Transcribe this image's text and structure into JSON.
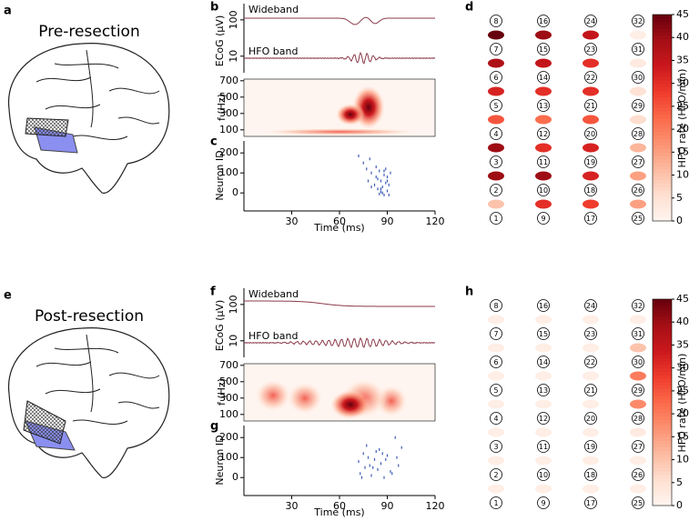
{
  "figure": {
    "rows": [
      {
        "title": "Pre-resection",
        "labels": [
          "a",
          "b",
          "c",
          "d"
        ]
      },
      {
        "title": "Post-resection",
        "labels": [
          "e",
          "f",
          "g",
          "h"
        ]
      }
    ]
  },
  "chart_data": [
    {
      "type": "ecog",
      "traces": [
        "Wideband",
        "HFO band"
      ],
      "ylabel": "ECoG (μV)",
      "ylim": [
        3.5,
        280
      ],
      "log": true,
      "yticks": [
        100,
        10
      ],
      "color": "#8b3a4a"
    },
    {
      "type": "spectrogram",
      "ylabel": "f (Hz)",
      "ylim": [
        20,
        720
      ],
      "yticks": [
        100,
        300,
        500,
        700
      ]
    },
    {
      "type": "raster",
      "ylabel": "Neuron ID",
      "xlabel": "Time (ms)",
      "xlim": [
        0,
        120
      ],
      "xticks": [
        30,
        60,
        90,
        120
      ],
      "ylim": [
        -90,
        260
      ],
      "yticks": [
        0,
        100,
        200
      ],
      "color": "#3b5bb5",
      "x": [
        72,
        75,
        77,
        78,
        80,
        82,
        83,
        84,
        85,
        86,
        86,
        87,
        88,
        88,
        89,
        89,
        90,
        90,
        91,
        92,
        84,
        87,
        80,
        79,
        85,
        88,
        90,
        86,
        83,
        91
      ],
      "y": [
        185,
        150,
        120,
        60,
        100,
        40,
        80,
        20,
        110,
        5,
        60,
        30,
        90,
        -10,
        50,
        120,
        10,
        80,
        40,
        100,
        70,
        0,
        30,
        170,
        -5,
        110,
        60,
        20,
        130,
        -10
      ]
    },
    {
      "type": "electrode-grid",
      "colorbar_label": "HFO rate (HFO/min)",
      "clim": [
        0,
        45
      ],
      "cticks": [
        0,
        5,
        10,
        15,
        20,
        25,
        30,
        35,
        40,
        45
      ],
      "colormap": [
        "#fff5f0",
        "#fee0d2",
        "#fcbba1",
        "#fc9272",
        "#fb6a4a",
        "#ef3b2c",
        "#cb181d",
        "#a50f15",
        "#67000d"
      ],
      "electrodes": [
        [
          8,
          7,
          6,
          5,
          4,
          3,
          2,
          1
        ],
        [
          16,
          15,
          14,
          13,
          12,
          11,
          10,
          9
        ],
        [
          24,
          23,
          22,
          21,
          20,
          19,
          18,
          17
        ],
        [
          32,
          31,
          30,
          29,
          28,
          27,
          26,
          25
        ]
      ],
      "values": [
        [
          45,
          38,
          32,
          25,
          40,
          40,
          10
        ],
        [
          40,
          35,
          30,
          22,
          30,
          40,
          30
        ],
        [
          35,
          30,
          30,
          25,
          32,
          32,
          28
        ],
        [
          2,
          3,
          5,
          6,
          12,
          15,
          15
        ]
      ]
    },
    {
      "type": "ecog",
      "traces": [
        "Wideband",
        "HFO band"
      ],
      "ylabel": "ECoG (μV)",
      "ylim": [
        3.5,
        280
      ],
      "log": true,
      "yticks": [
        100,
        10
      ],
      "color": "#8b3a4a"
    },
    {
      "type": "spectrogram",
      "ylabel": "f (Hz)",
      "ylim": [
        20,
        720
      ],
      "yticks": [
        100,
        300,
        500,
        700
      ]
    },
    {
      "type": "raster",
      "ylabel": "Neuron ID",
      "xlabel": "Time (ms)",
      "xlim": [
        0,
        120
      ],
      "xticks": [
        30,
        60,
        90,
        120
      ],
      "ylim": [
        -90,
        260
      ],
      "yticks": [
        0,
        100,
        200
      ],
      "color": "#3b5bb5",
      "x": [
        72,
        73,
        75,
        76,
        78,
        80,
        82,
        83,
        84,
        86,
        88,
        90,
        92,
        95,
        97,
        99,
        74,
        79,
        85,
        89,
        93,
        96,
        77,
        81,
        87
      ],
      "y": [
        80,
        20,
        120,
        50,
        100,
        10,
        90,
        130,
        40,
        70,
        0,
        110,
        30,
        200,
        60,
        150,
        0,
        60,
        140,
        90,
        20,
        100,
        160,
        50,
        120
      ]
    },
    {
      "type": "electrode-grid",
      "colorbar_label": "HFO rate (HFO/min)",
      "clim": [
        0,
        45
      ],
      "cticks": [
        0,
        5,
        10,
        15,
        20,
        25,
        30,
        35,
        40,
        45
      ],
      "colormap": [
        "#fff5f0",
        "#fee0d2",
        "#fcbba1",
        "#fc9272",
        "#fb6a4a",
        "#ef3b2c",
        "#cb181d",
        "#a50f15",
        "#67000d"
      ],
      "electrodes": [
        [
          8,
          7,
          6,
          5,
          4,
          3,
          2,
          1
        ],
        [
          16,
          15,
          14,
          13,
          12,
          11,
          10,
          9
        ],
        [
          24,
          23,
          22,
          21,
          20,
          19,
          18,
          17
        ],
        [
          32,
          31,
          30,
          29,
          28,
          27,
          26,
          25
        ]
      ],
      "values": [
        [
          2,
          2,
          2,
          2,
          2,
          2,
          2
        ],
        [
          2,
          2,
          2,
          2,
          2,
          2,
          2
        ],
        [
          2,
          2,
          2,
          2,
          2,
          2,
          2
        ],
        [
          2,
          10,
          20,
          18,
          3,
          2,
          2
        ]
      ]
    }
  ]
}
